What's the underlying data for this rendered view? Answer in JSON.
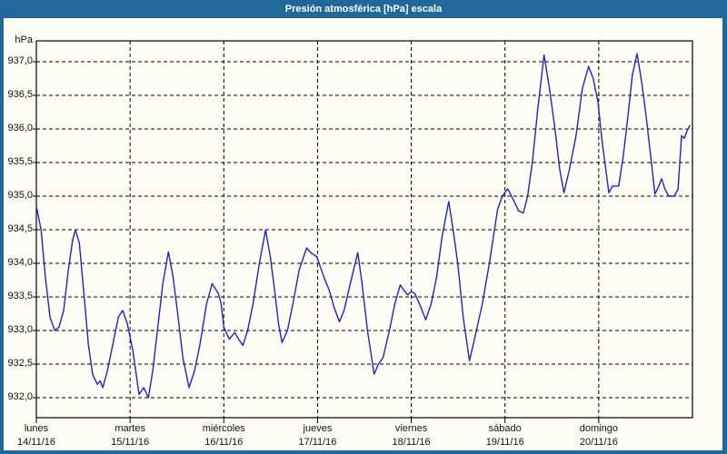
{
  "window": {
    "title": "Presión atmosférica [hPa] escala"
  },
  "colors": {
    "frame": "#20689a",
    "title_text": "#ffffff",
    "content_bg": "#fdfdf5",
    "plot_border": "#000000",
    "grid": "#000000",
    "line": "#2222c4",
    "label_text": "#111111"
  },
  "chart_data": {
    "type": "line",
    "title": "Presión atmosférica [hPa] escala",
    "ylabel": "hPa",
    "xlabel": "",
    "ylim": [
      931.7,
      937.3
    ],
    "grid": "dashed",
    "legend_position": "none",
    "y_ticks": [
      {
        "label": "937,0",
        "value": 937.0
      },
      {
        "label": "936,5",
        "value": 936.5
      },
      {
        "label": "936,0",
        "value": 936.0
      },
      {
        "label": "935,5",
        "value": 935.5
      },
      {
        "label": "935,0",
        "value": 935.0
      },
      {
        "label": "934,5",
        "value": 934.5
      },
      {
        "label": "934,0",
        "value": 934.0
      },
      {
        "label": "933,5",
        "value": 933.5
      },
      {
        "label": "933,0",
        "value": 933.0
      },
      {
        "label": "932,5",
        "value": 932.5
      },
      {
        "label": "932,0",
        "value": 932.0
      }
    ],
    "x_days": [
      {
        "name": "lunes",
        "date": "14/11/16"
      },
      {
        "name": "martes",
        "date": "15/11/16"
      },
      {
        "name": "miércoles",
        "date": "16/11/16"
      },
      {
        "name": "jueves",
        "date": "17/11/16"
      },
      {
        "name": "viernes",
        "date": "18/11/16"
      },
      {
        "name": "sábado",
        "date": "19/11/16"
      },
      {
        "name": "domingo",
        "date": "20/11/16"
      }
    ],
    "x_range_hours": [
      0,
      168
    ],
    "series": [
      {
        "name": "Presión atmosférica [hPa]",
        "color": "#2222c4",
        "points_hours_hpa": [
          [
            0,
            934.85
          ],
          [
            1.2,
            934.5
          ],
          [
            2.3,
            933.8
          ],
          [
            3.5,
            933.2
          ],
          [
            4.7,
            933.0
          ],
          [
            5.8,
            933.05
          ],
          [
            7.0,
            933.3
          ],
          [
            8.2,
            933.9
          ],
          [
            9.3,
            934.35
          ],
          [
            10.0,
            934.5
          ],
          [
            11.0,
            934.3
          ],
          [
            12.1,
            933.6
          ],
          [
            13.3,
            932.8
          ],
          [
            14.4,
            932.35
          ],
          [
            15.6,
            932.2
          ],
          [
            16.3,
            932.25
          ],
          [
            17.0,
            932.15
          ],
          [
            18.2,
            932.4
          ],
          [
            19.6,
            932.8
          ],
          [
            21.0,
            933.2
          ],
          [
            22.1,
            933.3
          ],
          [
            23.3,
            933.1
          ],
          [
            24.7,
            932.7
          ],
          [
            26.3,
            932.05
          ],
          [
            27.5,
            932.15
          ],
          [
            28.7,
            932.0
          ],
          [
            29.8,
            932.4
          ],
          [
            31.0,
            933.0
          ],
          [
            32.4,
            933.7
          ],
          [
            33.8,
            934.17
          ],
          [
            35.0,
            933.8
          ],
          [
            36.1,
            933.3
          ],
          [
            37.5,
            932.6
          ],
          [
            39.1,
            932.15
          ],
          [
            40.5,
            932.4
          ],
          [
            41.9,
            932.8
          ],
          [
            43.6,
            933.4
          ],
          [
            45.0,
            933.7
          ],
          [
            46.6,
            933.55
          ],
          [
            47.3,
            933.4
          ],
          [
            48.0,
            933.05
          ],
          [
            49.4,
            932.87
          ],
          [
            50.8,
            932.97
          ],
          [
            52.0,
            932.85
          ],
          [
            52.9,
            932.78
          ],
          [
            54.1,
            933.0
          ],
          [
            55.5,
            933.4
          ],
          [
            57.1,
            934.0
          ],
          [
            58.7,
            934.5
          ],
          [
            59.9,
            934.1
          ],
          [
            61.0,
            933.6
          ],
          [
            62.0,
            933.1
          ],
          [
            62.9,
            932.82
          ],
          [
            64.3,
            933.0
          ],
          [
            65.7,
            933.4
          ],
          [
            67.3,
            933.9
          ],
          [
            69.2,
            934.23
          ],
          [
            70.4,
            934.15
          ],
          [
            71.8,
            934.1
          ],
          [
            72.7,
            933.95
          ],
          [
            73.6,
            933.8
          ],
          [
            75.0,
            933.6
          ],
          [
            76.2,
            933.35
          ],
          [
            77.6,
            933.13
          ],
          [
            78.8,
            933.3
          ],
          [
            80.4,
            933.7
          ],
          [
            82.3,
            934.16
          ],
          [
            83.4,
            933.7
          ],
          [
            84.8,
            933.0
          ],
          [
            86.5,
            932.35
          ],
          [
            87.6,
            932.5
          ],
          [
            88.8,
            932.6
          ],
          [
            90.4,
            933.0
          ],
          [
            91.8,
            933.4
          ],
          [
            93.2,
            933.68
          ],
          [
            94.1,
            933.6
          ],
          [
            95.1,
            933.53
          ],
          [
            96.0,
            933.58
          ],
          [
            96.9,
            933.55
          ],
          [
            98.1,
            933.4
          ],
          [
            99.7,
            933.16
          ],
          [
            101.1,
            933.4
          ],
          [
            102.5,
            933.8
          ],
          [
            103.9,
            934.4
          ],
          [
            105.6,
            934.92
          ],
          [
            106.7,
            934.5
          ],
          [
            107.9,
            934.0
          ],
          [
            109.3,
            933.2
          ],
          [
            110.9,
            932.55
          ],
          [
            112.3,
            932.9
          ],
          [
            114.2,
            933.4
          ],
          [
            116.0,
            934.0
          ],
          [
            118.1,
            934.8
          ],
          [
            119.3,
            935.0
          ],
          [
            120.7,
            935.11
          ],
          [
            122.1,
            934.95
          ],
          [
            123.5,
            934.78
          ],
          [
            124.7,
            934.75
          ],
          [
            125.8,
            935.0
          ],
          [
            127.0,
            935.5
          ],
          [
            128.4,
            936.3
          ],
          [
            130.0,
            937.1
          ],
          [
            131.4,
            936.6
          ],
          [
            132.8,
            936.0
          ],
          [
            134.0,
            935.4
          ],
          [
            135.1,
            935.05
          ],
          [
            136.5,
            935.4
          ],
          [
            138.2,
            935.9
          ],
          [
            139.8,
            936.6
          ],
          [
            141.4,
            936.93
          ],
          [
            142.6,
            936.75
          ],
          [
            143.8,
            936.4
          ],
          [
            144.9,
            935.8
          ],
          [
            146.6,
            935.05
          ],
          [
            147.5,
            935.15
          ],
          [
            149.1,
            935.15
          ],
          [
            150.3,
            935.6
          ],
          [
            151.5,
            936.2
          ],
          [
            152.6,
            936.8
          ],
          [
            153.8,
            937.12
          ],
          [
            155.0,
            936.7
          ],
          [
            156.1,
            936.2
          ],
          [
            157.3,
            935.6
          ],
          [
            158.4,
            935.03
          ],
          [
            159.4,
            935.15
          ],
          [
            160.1,
            935.26
          ],
          [
            161.0,
            935.1
          ],
          [
            161.9,
            935.0
          ],
          [
            163.3,
            935.0
          ],
          [
            164.3,
            935.1
          ],
          [
            165.2,
            935.9
          ],
          [
            165.9,
            935.86
          ],
          [
            166.6,
            935.97
          ],
          [
            167.3,
            936.05
          ]
        ]
      }
    ]
  }
}
